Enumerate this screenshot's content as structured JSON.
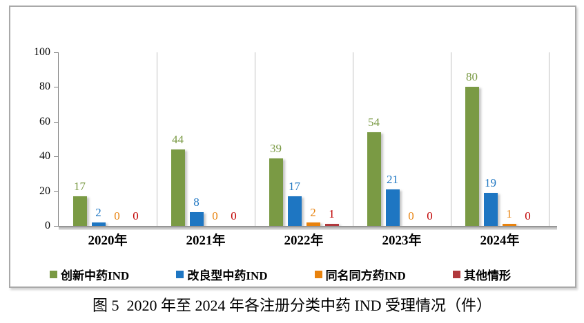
{
  "caption": "图 5  2020 年至 2024 年各注册分类中药 IND 受理情况（件）",
  "chart_data": {
    "type": "bar",
    "title": "",
    "categories": [
      "2020年",
      "2021年",
      "2022年",
      "2023年",
      "2024年"
    ],
    "series": [
      {
        "name": "创新中药IND",
        "color": "#7A9A44",
        "label_color": "#7A9A44",
        "values": [
          17,
          44,
          39,
          54,
          80
        ]
      },
      {
        "name": "改良型中药IND",
        "color": "#1E76C2",
        "label_color": "#1E76C2",
        "values": [
          2,
          8,
          17,
          21,
          19
        ]
      },
      {
        "name": "同名同方药IND",
        "color": "#E8820D",
        "label_color": "#E8820D",
        "values": [
          0,
          0,
          2,
          0,
          1
        ]
      },
      {
        "name": "其他情形",
        "color": "#B0383C",
        "label_color": "#C00000",
        "values": [
          0,
          0,
          1,
          0,
          0
        ]
      }
    ],
    "ylim": [
      0,
      100
    ],
    "yticks": [
      0,
      20,
      40,
      60,
      80,
      100
    ],
    "xlabel": "",
    "ylabel": "",
    "grid": "vertical-category-separators",
    "legend_position": "bottom",
    "axis_color": "#7f7f7f",
    "separator_color": "#bfbfbf",
    "frame_border_color": "#a9a9a9"
  }
}
